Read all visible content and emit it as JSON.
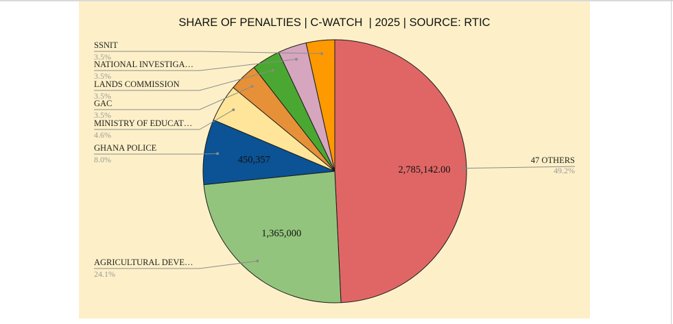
{
  "chart_data": {
    "type": "pie",
    "title": "SHARE OF PENALTIES | C-WATCH  | 2025 | SOURCE: RTIC",
    "slices": [
      {
        "label": "47 OTHERS",
        "percent": 49.2,
        "percent_text": "49.2%",
        "value": 2785142.0,
        "value_label": "2,785,142.00",
        "color": "#e06666"
      },
      {
        "label": "AGRICULTURAL DEVE…",
        "percent": 24.1,
        "percent_text": "24.1%",
        "value": 1365000,
        "value_label": "1,365,000",
        "color": "#93c47d"
      },
      {
        "label": "GHANA POLICE",
        "percent": 8.0,
        "percent_text": "8.0%",
        "value": 450357,
        "value_label": "450,357",
        "color": "#0b5394"
      },
      {
        "label": "MINISTRY OF EDUCAT…",
        "percent": 4.6,
        "percent_text": "4.6%",
        "value_label": "",
        "color": "#ffe599"
      },
      {
        "label": "GAC",
        "percent": 3.5,
        "percent_text": "3.5%",
        "value_label": "",
        "color": "#e69138"
      },
      {
        "label": "LANDS COMMISSION",
        "percent": 3.5,
        "percent_text": "3.5%",
        "value_label": "",
        "color": "#4aa832"
      },
      {
        "label": "NATIONAL INVESTIGA…",
        "percent": 3.5,
        "percent_text": "3.5%",
        "value_label": "",
        "color": "#d5a6bd"
      },
      {
        "label": "SSNIT",
        "percent": 3.5,
        "percent_text": "3.5%",
        "value_label": "",
        "color": "#ff9900"
      }
    ]
  }
}
